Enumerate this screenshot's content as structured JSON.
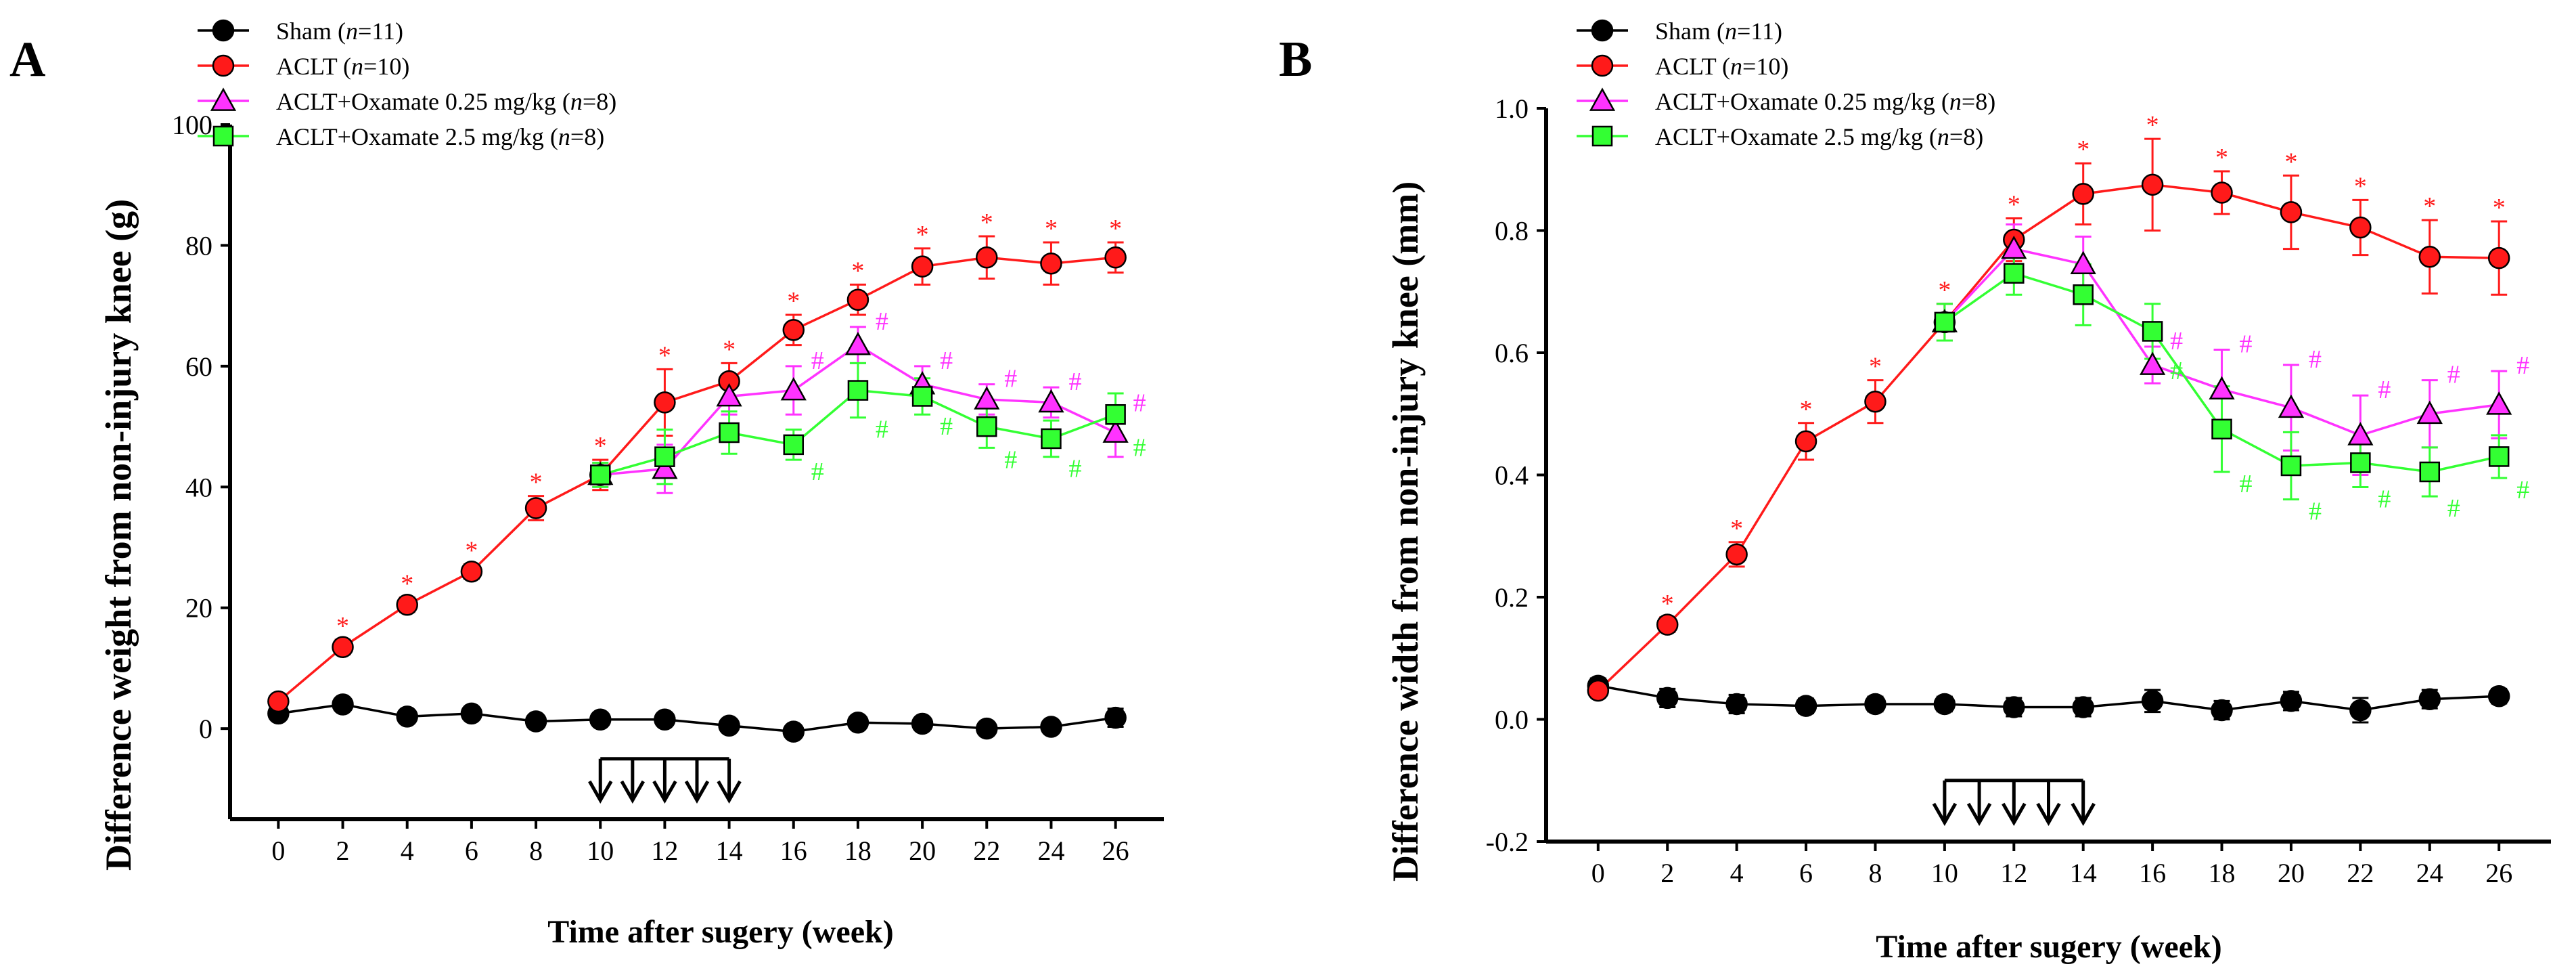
{
  "colors": {
    "sham": "#000000",
    "aclt": "#ff1a1a",
    "oxa025": "#ff33ff",
    "oxa25": "#33ff33",
    "axis": "#000000"
  },
  "legend_labels": {
    "sham": {
      "name": "Sham (",
      "n": "n",
      "count": "=11)"
    },
    "aclt": {
      "name": "ACLT (",
      "n": "n",
      "count": "=10)"
    },
    "oxa025": {
      "name": "ACLT+Oxamate 0.25 mg/kg (",
      "n": "n",
      "count": "=8)"
    },
    "oxa25": {
      "name": "ACLT+Oxamate 2.5 mg/kg (",
      "n": "n",
      "count": "=8)"
    }
  },
  "chart_data": [
    {
      "panel": "A",
      "type": "line",
      "title": "",
      "xlabel": "Time after sugery (week)",
      "ylabel": "Difference weight from non-injury knee (g)",
      "x_ticks": [
        0,
        2,
        4,
        6,
        8,
        10,
        12,
        14,
        16,
        18,
        20,
        22,
        24,
        26
      ],
      "y_ticks": [
        0,
        20,
        40,
        60,
        80,
        100
      ],
      "ylim": [
        -15,
        100
      ],
      "xlim": [
        -1.5,
        27.5
      ],
      "treatment_arrows": {
        "weeks": [
          10,
          11,
          12,
          13,
          14
        ],
        "bar_level": -5
      },
      "series": [
        {
          "key": "sham",
          "name": "Sham (n=11)",
          "marker": "circle",
          "x": [
            0,
            2,
            4,
            6,
            8,
            10,
            12,
            14,
            16,
            18,
            20,
            22,
            24,
            26
          ],
          "y": [
            2.5,
            4,
            2,
            2.5,
            1.2,
            1.5,
            1.5,
            0.5,
            -0.5,
            1,
            0.8,
            0,
            0.3,
            1.8
          ],
          "err": [
            1,
            1,
            1,
            1,
            1,
            1,
            1,
            1,
            1,
            1,
            1,
            1,
            1,
            1.5
          ],
          "sig": []
        },
        {
          "key": "aclt",
          "name": "ACLT (n=10)",
          "marker": "circle",
          "x": [
            0,
            2,
            4,
            6,
            8,
            10,
            12,
            14,
            16,
            18,
            20,
            22,
            24,
            26
          ],
          "y": [
            4.5,
            13.5,
            20.5,
            26,
            36.5,
            42,
            54,
            57.5,
            66,
            71,
            76.5,
            78,
            77,
            78
          ],
          "err": [
            1,
            1.2,
            1.2,
            1.2,
            2,
            2.5,
            5.5,
            3,
            2.5,
            2.5,
            3,
            3.5,
            3.5,
            2.5
          ],
          "sig": [
            "",
            "*",
            "*",
            "*",
            "*",
            "*",
            "*",
            "*",
            "*",
            "*",
            "*",
            "*",
            "*",
            "*"
          ]
        },
        {
          "key": "oxa025",
          "name": "ACLT+Oxamate 0.25 mg/kg (n=8)",
          "marker": "triangle",
          "x": [
            10,
            12,
            14,
            16,
            18,
            20,
            22,
            24,
            26
          ],
          "y": [
            42,
            43,
            55,
            56,
            63.5,
            57,
            54.5,
            54,
            49
          ],
          "err": [
            2,
            4,
            3,
            4,
            3,
            3,
            2.5,
            2.5,
            4
          ],
          "sig": [
            "",
            "",
            "",
            "#",
            "#",
            "#",
            "#",
            "#",
            "#"
          ]
        },
        {
          "key": "oxa25",
          "name": "ACLT+Oxamate 2.5 mg/kg (n=8)",
          "marker": "square",
          "x": [
            10,
            12,
            14,
            16,
            18,
            20,
            22,
            24,
            26
          ],
          "y": [
            42,
            45,
            49,
            47,
            56,
            55,
            50,
            48,
            52
          ],
          "err": [
            2,
            4.5,
            3.5,
            2.5,
            4.5,
            3,
            3.5,
            3,
            3.5
          ],
          "sig": [
            "",
            "",
            "",
            "#",
            "#",
            "#",
            "#",
            "#",
            "#"
          ]
        }
      ]
    },
    {
      "panel": "B",
      "type": "line",
      "title": "",
      "xlabel": "Time after sugery (week)",
      "ylabel": "Difference width from non-injury knee (mm)",
      "x_ticks": [
        0,
        2,
        4,
        6,
        8,
        10,
        12,
        14,
        16,
        18,
        20,
        22,
        24,
        26
      ],
      "y_ticks": [
        -0.2,
        0.0,
        0.2,
        0.4,
        0.6,
        0.8,
        1.0
      ],
      "y_tick_labels": [
        "-0.2",
        "0.0",
        "0.2",
        "0.4",
        "0.6",
        "0.8",
        "1.0"
      ],
      "ylim": [
        -0.2,
        1.0
      ],
      "xlim": [
        -1.5,
        27.5
      ],
      "treatment_arrows": {
        "weeks": [
          10,
          11,
          12,
          13,
          14
        ],
        "bar_level": -0.1
      },
      "series": [
        {
          "key": "sham",
          "name": "Sham (n=11)",
          "marker": "circle",
          "x": [
            0,
            2,
            4,
            6,
            8,
            10,
            12,
            14,
            16,
            18,
            20,
            22,
            24,
            26
          ],
          "y": [
            0.055,
            0.035,
            0.025,
            0.022,
            0.025,
            0.025,
            0.02,
            0.02,
            0.03,
            0.015,
            0.03,
            0.015,
            0.033,
            0.038
          ],
          "err": [
            0.012,
            0.015,
            0.015,
            0.012,
            0.012,
            0.012,
            0.015,
            0.015,
            0.018,
            0.015,
            0.015,
            0.02,
            0.015,
            0.012
          ],
          "sig": []
        },
        {
          "key": "aclt",
          "name": "ACLT (n=10)",
          "marker": "circle",
          "x": [
            0,
            2,
            4,
            6,
            8,
            10,
            12,
            14,
            16,
            18,
            20,
            22,
            24,
            26
          ],
          "y": [
            0.047,
            0.155,
            0.27,
            0.455,
            0.52,
            0.65,
            0.785,
            0.86,
            0.875,
            0.862,
            0.83,
            0.805,
            0.757,
            0.755
          ],
          "err": [
            0.01,
            0.012,
            0.02,
            0.03,
            0.035,
            0.03,
            0.035,
            0.05,
            0.075,
            0.035,
            0.06,
            0.045,
            0.06,
            0.06
          ],
          "sig": [
            "",
            "*",
            "*",
            "*",
            "*",
            "*",
            "*",
            "*",
            "*",
            "*",
            "*",
            "*",
            "*",
            "*"
          ]
        },
        {
          "key": "oxa025",
          "name": "ACLT+Oxamate 0.25 mg/kg (n=8)",
          "marker": "triangle",
          "x": [
            10,
            12,
            14,
            16,
            18,
            20,
            22,
            24,
            26
          ],
          "y": [
            0.65,
            0.77,
            0.745,
            0.58,
            0.54,
            0.51,
            0.465,
            0.5,
            0.515
          ],
          "err": [
            0.03,
            0.04,
            0.045,
            0.03,
            0.065,
            0.07,
            0.065,
            0.055,
            0.055
          ],
          "sig": [
            "",
            "",
            "",
            "#",
            "#",
            "#",
            "#",
            "#",
            "#"
          ]
        },
        {
          "key": "oxa25",
          "name": "ACLT+Oxamate 2.5 mg/kg (n=8)",
          "marker": "square",
          "x": [
            10,
            12,
            14,
            16,
            18,
            20,
            22,
            24,
            26
          ],
          "y": [
            0.65,
            0.73,
            0.695,
            0.635,
            0.475,
            0.415,
            0.42,
            0.405,
            0.43
          ],
          "err": [
            0.03,
            0.035,
            0.05,
            0.045,
            0.07,
            0.055,
            0.04,
            0.04,
            0.035
          ],
          "sig": [
            "",
            "",
            "",
            "#",
            "#",
            "#",
            "#",
            "#",
            "#"
          ]
        }
      ]
    }
  ]
}
